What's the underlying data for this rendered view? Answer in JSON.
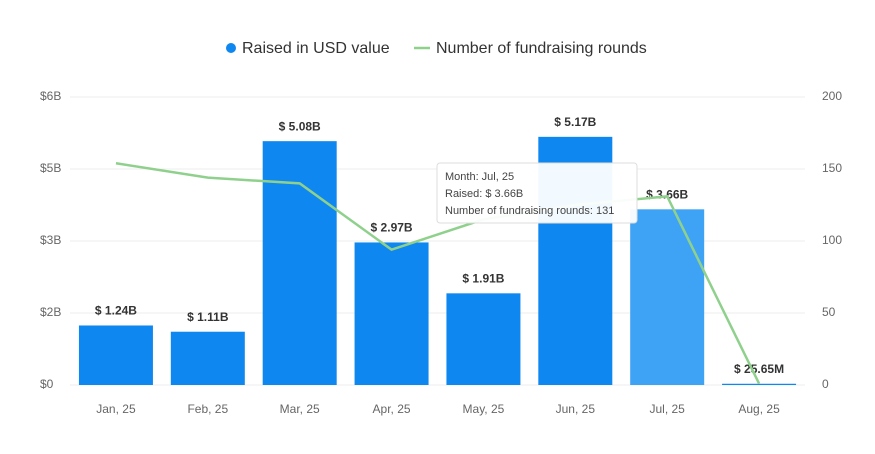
{
  "chart_data": {
    "type": "bar-line",
    "categories": [
      "Jan, 25",
      "Feb, 25",
      "Mar, 25",
      "Apr, 25",
      "May, 25",
      "Jun, 25",
      "Jul, 25",
      "Aug, 25"
    ],
    "series": [
      {
        "name": "Raised in USD value",
        "type": "bar",
        "color": "#0f87f0",
        "colors": [
          "#0f87f0",
          "#0f87f0",
          "#0f87f0",
          "#0f87f0",
          "#0f87f0",
          "#0f87f0",
          "#3ea2f5",
          "#0f87f0"
        ],
        "values": [
          1.24,
          1.11,
          5.08,
          2.97,
          1.91,
          5.17,
          3.66,
          0.02565
        ],
        "value_labels": [
          "$ 1.24B",
          "$ 1.11B",
          "$ 5.08B",
          "$ 2.97B",
          "$ 1.91B",
          "$ 5.17B",
          "$ 3.66B",
          "$ 25.65M"
        ]
      },
      {
        "name": "Number of fundraising rounds",
        "type": "line",
        "axis": "y2",
        "color": "#8fd18c",
        "values": [
          154,
          144,
          140,
          94,
          115,
          125,
          131,
          1
        ]
      }
    ],
    "ylim": [
      0,
      6
    ],
    "yticks": [
      {
        "value": 0,
        "label": "$0"
      },
      {
        "value": 1.5,
        "label": "$2B"
      },
      {
        "value": 3,
        "label": "$3B"
      },
      {
        "value": 4.5,
        "label": "$5B"
      },
      {
        "value": 6,
        "label": "$6B"
      }
    ],
    "y2lim": [
      0,
      200
    ],
    "y2ticks": [
      0,
      50,
      100,
      150,
      200
    ],
    "grid": true,
    "tooltip": [
      "Month: Jul, 25",
      "Raised: $ 3.66B",
      "Number of fundraising rounds: 131"
    ]
  }
}
